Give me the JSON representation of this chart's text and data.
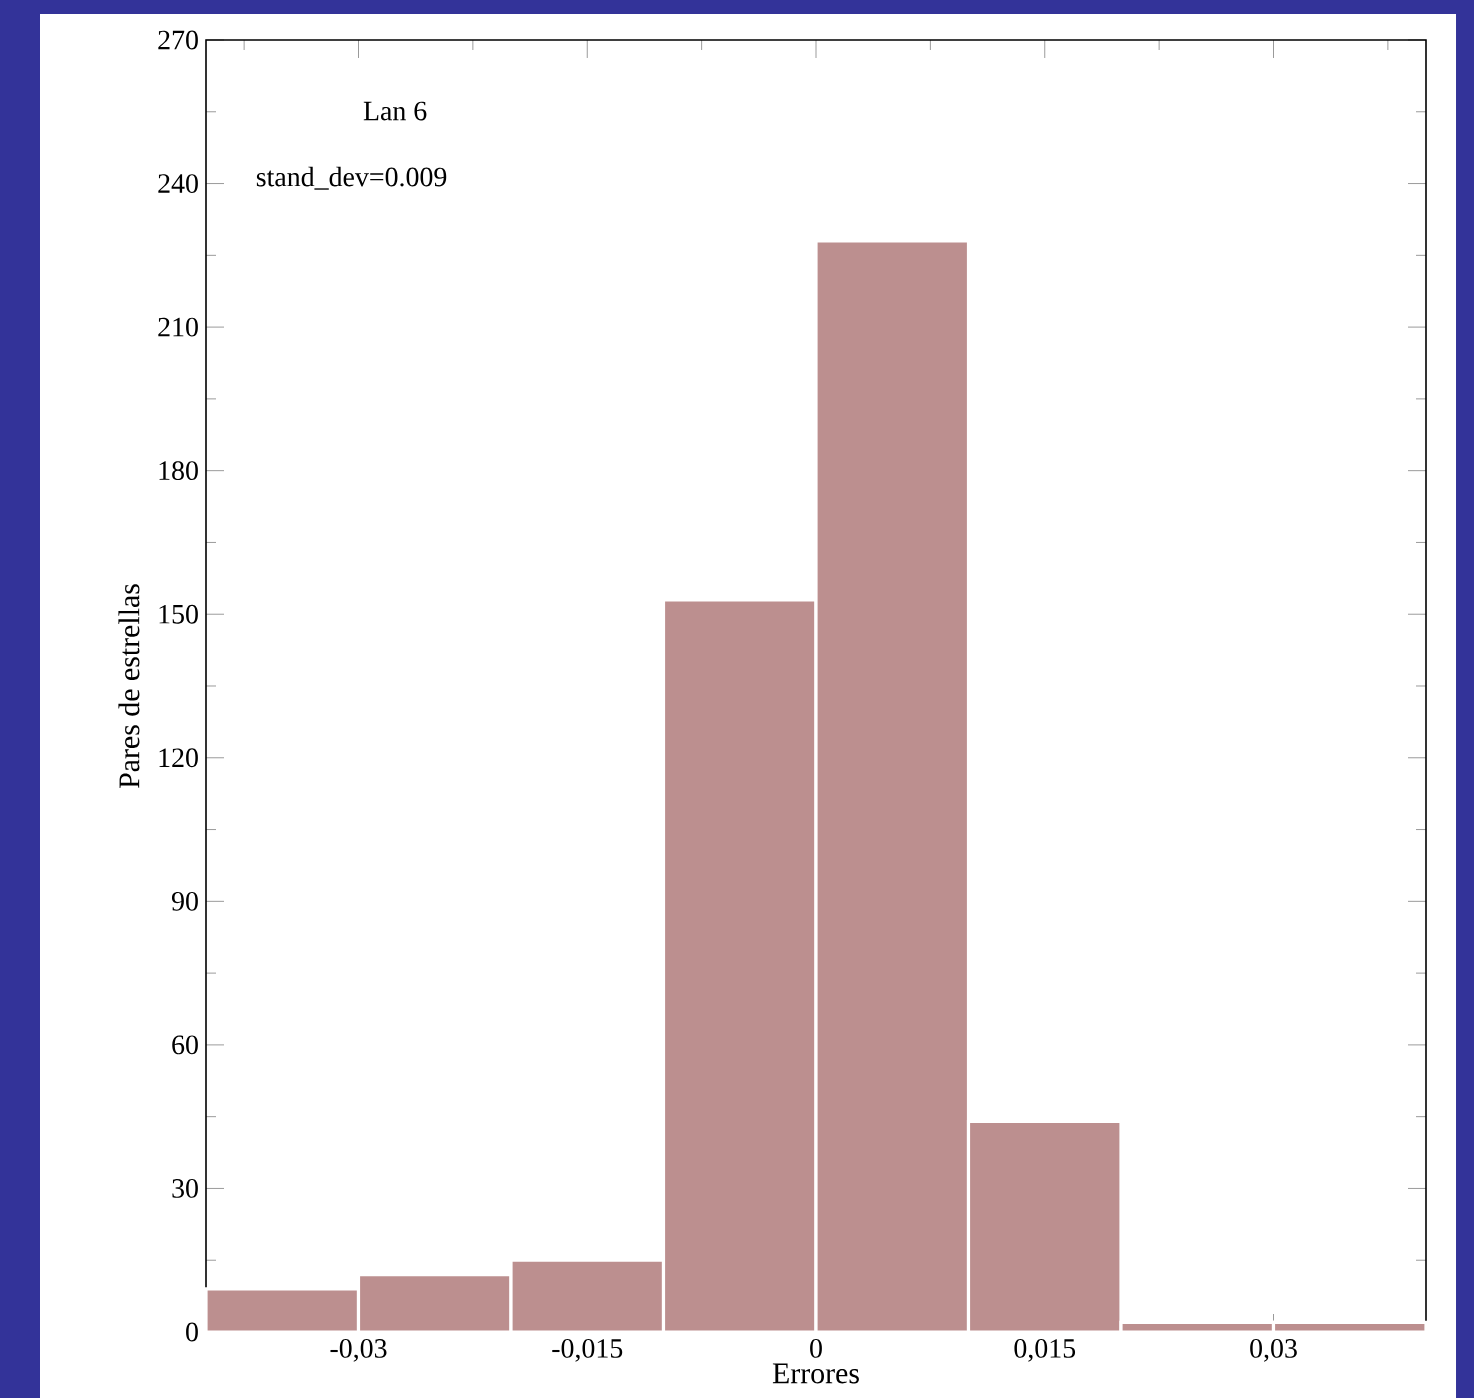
{
  "chart_data": {
    "type": "histogram",
    "xlabel": "Errores",
    "ylabel": "Pares de estrellas",
    "annotations": [
      "Lan 6",
      "stand_dev=0.009"
    ],
    "bins": [
      -0.04,
      -0.03,
      -0.02,
      -0.01,
      0,
      0.01,
      0.02,
      0.03,
      0.04
    ],
    "values": [
      9,
      12,
      15,
      153,
      228,
      44,
      2,
      2
    ],
    "color": "#bc8f8f",
    "xlim": [
      -0.04,
      0.04
    ],
    "xticks": [
      {
        "value": -0.0375,
        "label": null
      },
      {
        "value": -0.03,
        "label": "-0,03"
      },
      {
        "value": -0.0225,
        "label": null
      },
      {
        "value": -0.015,
        "label": "-0,015"
      },
      {
        "value": -0.0075,
        "label": null
      },
      {
        "value": 0,
        "label": "0"
      },
      {
        "value": 0.0075,
        "label": null
      },
      {
        "value": 0.015,
        "label": "0,015"
      },
      {
        "value": 0.0225,
        "label": null
      },
      {
        "value": 0.03,
        "label": "0,03"
      },
      {
        "value": 0.0375,
        "label": null
      }
    ],
    "ylim": [
      0,
      270
    ],
    "yticks": [
      0,
      {
        "value": 15,
        "label": null
      },
      30,
      {
        "value": 45,
        "label": null
      },
      60,
      {
        "value": 75,
        "label": null
      },
      90,
      {
        "value": 105,
        "label": null
      },
      120,
      {
        "value": 135,
        "label": null
      },
      150,
      {
        "value": 165,
        "label": null
      },
      180,
      {
        "value": 195,
        "label": null
      },
      210,
      {
        "value": 225,
        "label": null
      },
      240,
      {
        "value": 255,
        "label": null
      },
      270
    ],
    "grid": false
  }
}
